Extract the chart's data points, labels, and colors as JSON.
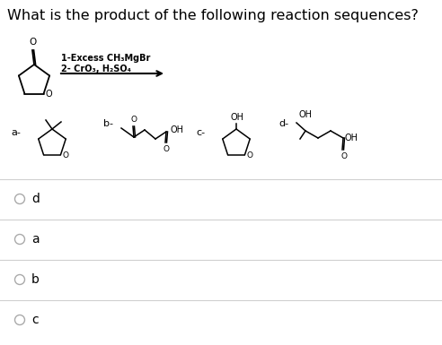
{
  "title": "What is the product of the following reaction sequences?",
  "title_fontsize": 11.5,
  "background_color": "#ffffff",
  "text_color": "#000000",
  "reagent_line1": "1-Excess CH₃MgBr",
  "reagent_line2": "2- CrO₃, H₂SO₄",
  "divider_color": "#d0d0d0",
  "radio_color": "#aaaaaa",
  "radio_labels": [
    "d",
    "a",
    "b",
    "c"
  ]
}
